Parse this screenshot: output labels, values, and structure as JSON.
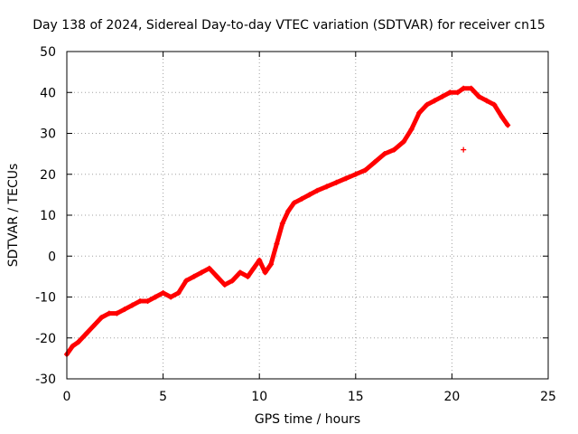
{
  "chart_data": {
    "type": "scatter",
    "title": "Day 138 of 2024, Sidereal Day-to-day VTEC variation (SDTVAR) for receiver cn15",
    "xlabel": "GPS time / hours",
    "ylabel": "SDTVAR / TECUs",
    "xlim": [
      0,
      25
    ],
    "ylim": [
      -30,
      50
    ],
    "xticks": [
      0,
      5,
      10,
      15,
      20,
      25
    ],
    "yticks": [
      -30,
      -20,
      -10,
      0,
      10,
      20,
      30,
      40,
      50
    ],
    "xtick_labels": [
      "0",
      "5",
      "10",
      "15",
      "20",
      "25"
    ],
    "ytick_labels": [
      "-30",
      "-20",
      "-10",
      "0",
      "10",
      "20",
      "30",
      "40",
      "50"
    ],
    "grid": true,
    "marker": "+",
    "color": "#ff0000",
    "series": [
      {
        "name": "SDTVAR",
        "x": [
          0.0,
          0.3,
          0.6,
          1.0,
          1.4,
          1.8,
          2.2,
          2.6,
          3.0,
          3.4,
          3.8,
          4.2,
          4.6,
          5.0,
          5.4,
          5.8,
          6.2,
          6.6,
          7.0,
          7.4,
          7.8,
          8.2,
          8.6,
          9.0,
          9.4,
          9.7,
          10.0,
          10.3,
          10.6,
          10.9,
          11.2,
          11.5,
          11.8,
          12.2,
          12.6,
          13.0,
          13.5,
          14.0,
          14.5,
          15.0,
          15.5,
          16.0,
          16.5,
          17.0,
          17.5,
          17.9,
          18.3,
          18.7,
          19.1,
          19.5,
          19.9,
          20.3,
          20.6,
          21.0,
          21.4,
          21.8,
          22.2,
          22.6,
          22.9,
          20.6
        ],
        "y": [
          -24,
          -22,
          -21,
          -19,
          -17,
          -15,
          -14,
          -14,
          -13,
          -12,
          -11,
          -11,
          -10,
          -9,
          -10,
          -9,
          -6,
          -5,
          -4,
          -3,
          -5,
          -7,
          -6,
          -4,
          -5,
          -3,
          -1,
          -4,
          -2,
          3,
          8,
          11,
          13,
          14,
          15,
          16,
          17,
          18,
          19,
          20,
          21,
          23,
          25,
          26,
          28,
          31,
          35,
          37,
          38,
          39,
          40,
          40,
          41,
          41,
          39,
          38,
          37,
          34,
          32,
          26
        ]
      }
    ]
  }
}
